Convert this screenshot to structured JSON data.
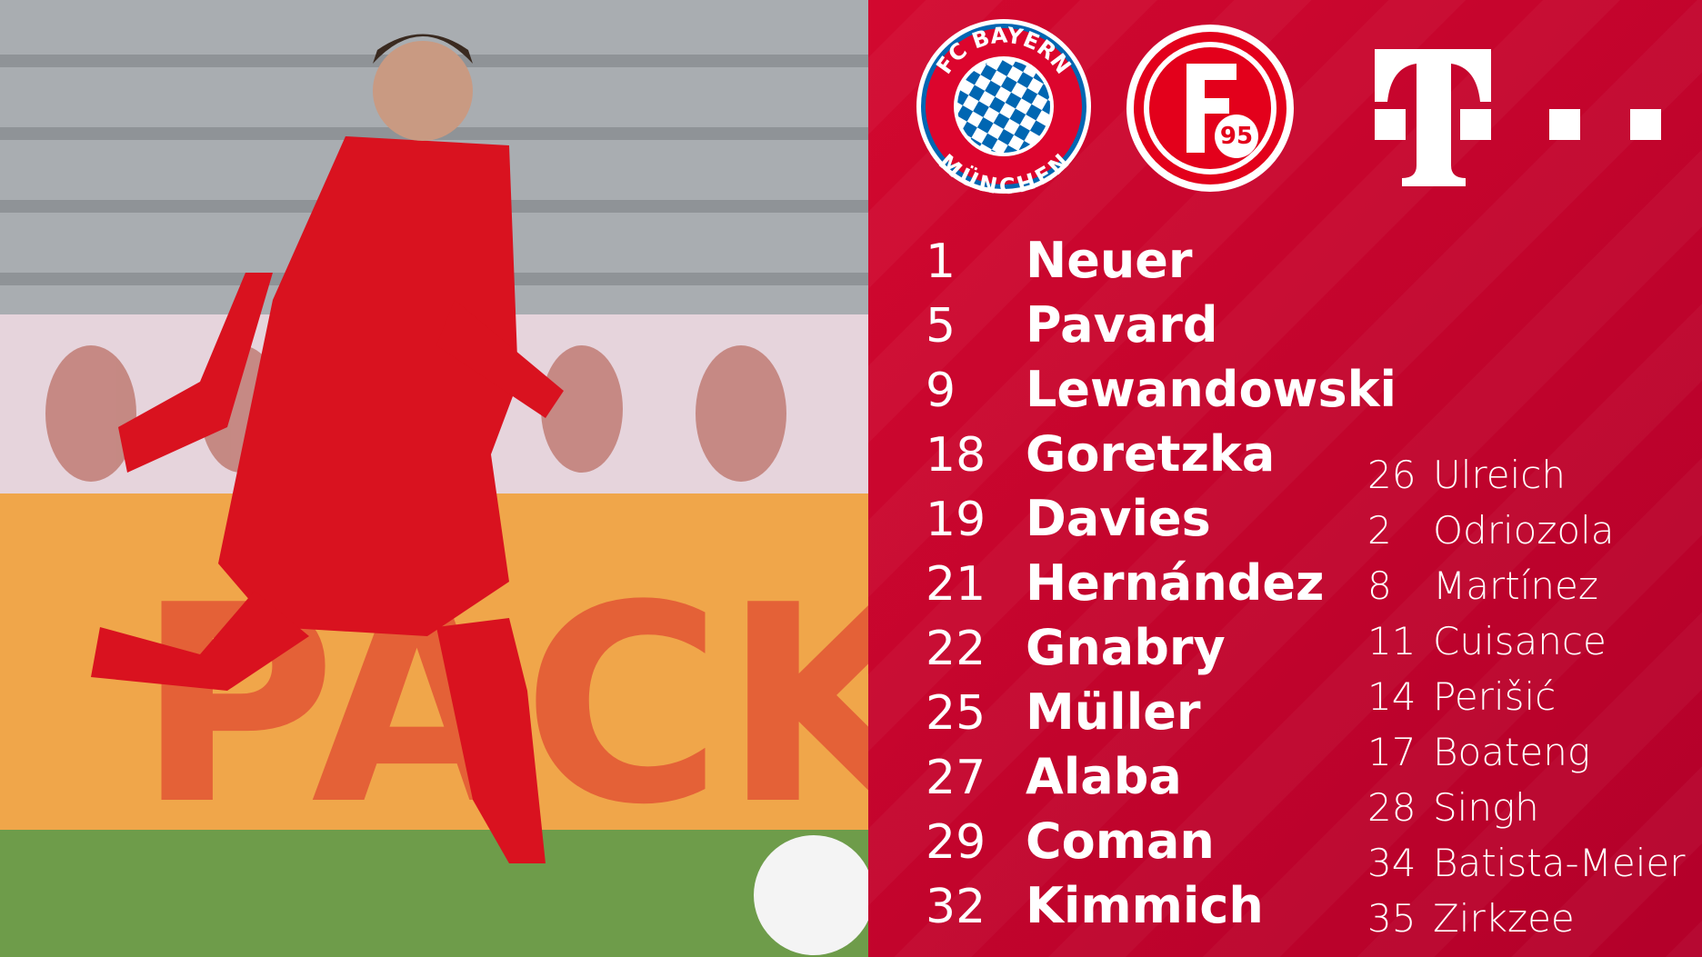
{
  "logos": {
    "bayern_top": "FC BAYERN",
    "bayern_bottom": "MÜNCHEN",
    "fortuna": "95"
  },
  "starters": [
    {
      "number": 1,
      "name": "Neuer"
    },
    {
      "number": 5,
      "name": "Pavard"
    },
    {
      "number": 9,
      "name": "Lewandowski"
    },
    {
      "number": 18,
      "name": "Goretzka"
    },
    {
      "number": 19,
      "name": "Davies"
    },
    {
      "number": 21,
      "name": "Hernández"
    },
    {
      "number": 22,
      "name": "Gnabry"
    },
    {
      "number": 25,
      "name": "Müller"
    },
    {
      "number": 27,
      "name": "Alaba"
    },
    {
      "number": 29,
      "name": "Coman"
    },
    {
      "number": 32,
      "name": "Kimmich"
    }
  ],
  "substitutes": [
    {
      "number": 26,
      "name": "Ulreich"
    },
    {
      "number": 2,
      "name": "Odriozola"
    },
    {
      "number": 8,
      "name": "Martínez"
    },
    {
      "number": 11,
      "name": "Cuisance"
    },
    {
      "number": 14,
      "name": "Perišić"
    },
    {
      "number": 17,
      "name": "Boateng"
    },
    {
      "number": 28,
      "name": "Singh"
    },
    {
      "number": 34,
      "name": "Batista-Meier"
    },
    {
      "number": 35,
      "name": "Zirkzee"
    }
  ]
}
